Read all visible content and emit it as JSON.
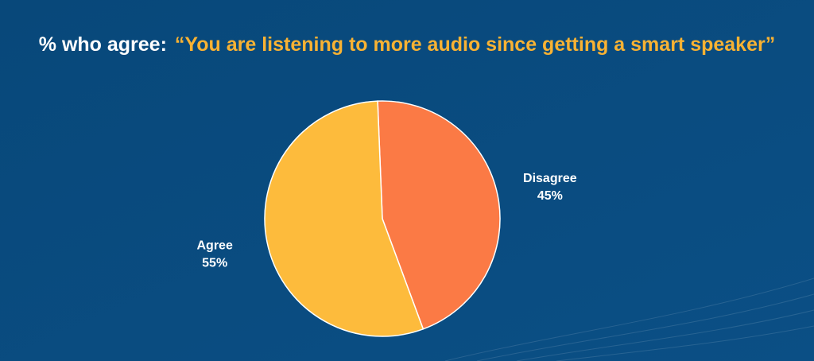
{
  "chart_data": {
    "type": "pie",
    "title": {
      "lead": "% who agree:",
      "quote": "“You are listening to more audio since getting a smart speaker”"
    },
    "categories": [
      "Disagree",
      "Agree"
    ],
    "values": [
      45,
      55
    ],
    "value_labels": [
      "45%",
      "55%"
    ],
    "colors": [
      "#fb7a45",
      "#fdbb3c"
    ]
  }
}
